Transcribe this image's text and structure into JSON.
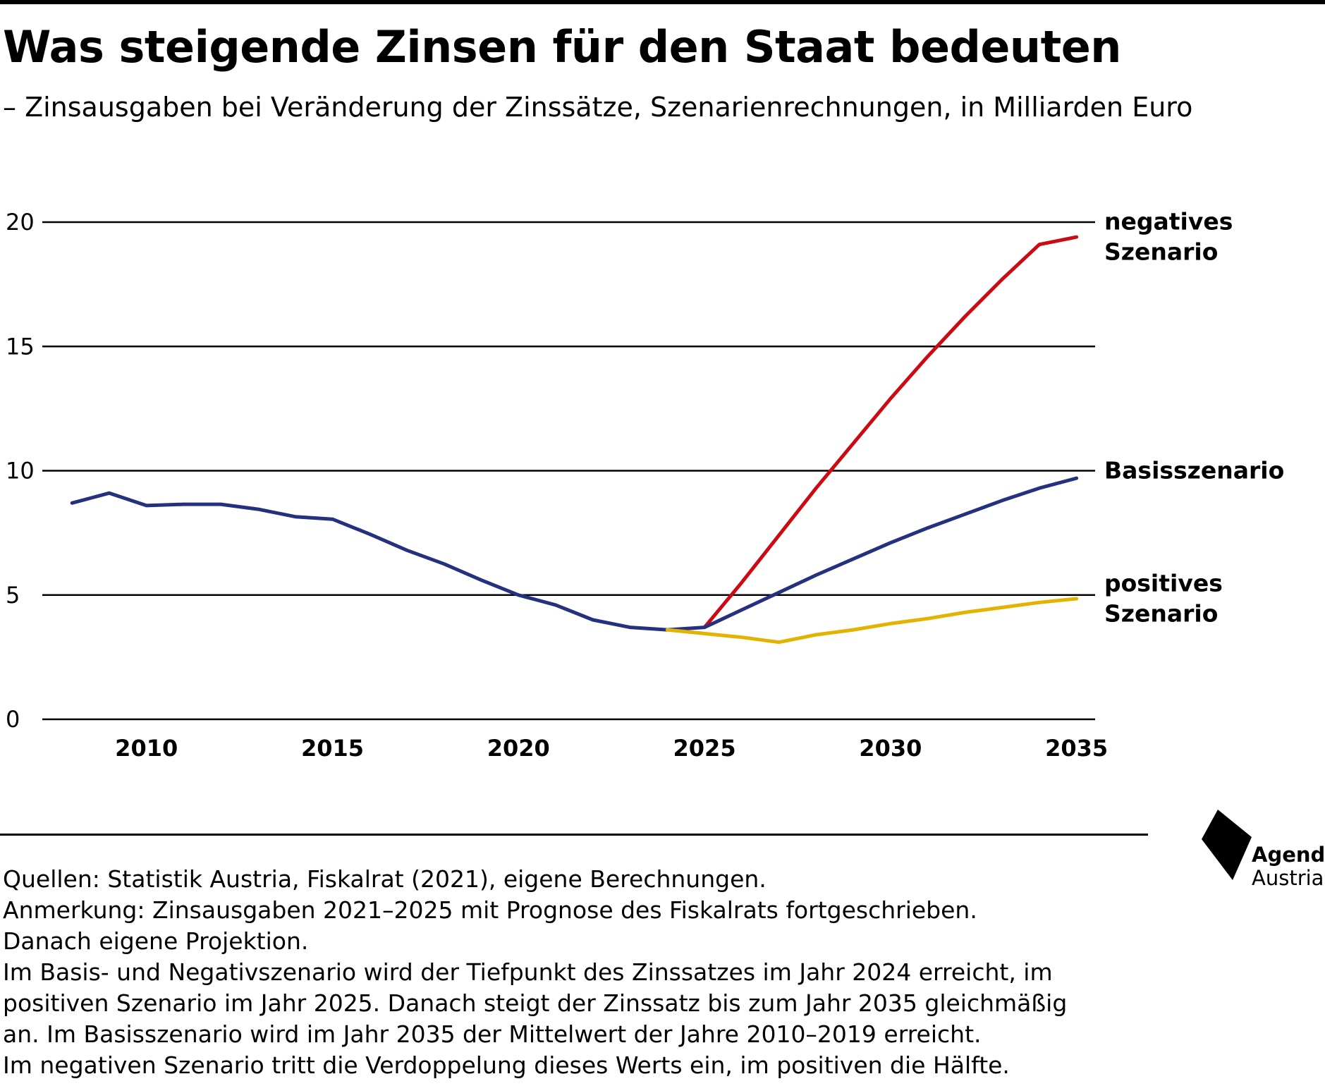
{
  "header": {
    "title": "Was steigende Zinsen für den Staat bedeuten",
    "subtitle": "– Zinsausgaben bei Veränderung der Zinssätze, Szenarienrechnungen, in Milliarden Euro"
  },
  "chart_data": {
    "type": "line",
    "title": "Was steigende Zinsen für den Staat bedeuten",
    "subtitle": "– Zinsausgaben bei Veränderung der Zinssätze, Szenarienrechnungen, in Milliarden Euro",
    "xlim": [
      2007.2,
      2035.5
    ],
    "ylim": [
      0,
      20
    ],
    "x_ticks": [
      2010,
      2015,
      2020,
      2025,
      2030,
      2035
    ],
    "y_ticks": [
      0,
      5,
      10,
      15,
      20
    ],
    "grid": "horizontal",
    "legend": "direct labels right of the lines",
    "series": [
      {
        "name": "negatives Szenario",
        "label_lines": [
          "negatives",
          "Szenario"
        ],
        "color": "#cc0a14",
        "x": [
          2025,
          2026,
          2027,
          2028,
          2029,
          2030,
          2031,
          2032,
          2033,
          2034,
          2035
        ],
        "y": [
          3.7,
          5.5,
          7.4,
          9.3,
          11.1,
          12.9,
          14.6,
          16.2,
          17.7,
          19.1,
          19.4
        ]
      },
      {
        "name": "Basisszenario",
        "label_lines": [
          "Basisszenario"
        ],
        "color": "#25307f",
        "x": [
          2008,
          2009,
          2010,
          2011,
          2012,
          2013,
          2014,
          2015,
          2016,
          2017,
          2018,
          2019,
          2020,
          2021,
          2022,
          2023,
          2024,
          2025,
          2026,
          2027,
          2028,
          2029,
          2030,
          2031,
          2032,
          2033,
          2034,
          2035
        ],
        "y": [
          8.7,
          9.1,
          8.6,
          8.65,
          8.65,
          8.45,
          8.15,
          8.05,
          7.45,
          6.8,
          6.25,
          5.6,
          5.0,
          4.6,
          4.0,
          3.7,
          3.6,
          3.7,
          4.4,
          5.1,
          5.8,
          6.45,
          7.1,
          7.7,
          8.25,
          8.8,
          9.3,
          9.7
        ]
      },
      {
        "name": "positives Szenario",
        "label_lines": [
          "positives",
          "Szenario"
        ],
        "color": "#e0b400",
        "x": [
          2024,
          2025,
          2026,
          2027,
          2028,
          2029,
          2030,
          2031,
          2032,
          2033,
          2034,
          2035
        ],
        "y": [
          3.6,
          3.45,
          3.3,
          3.1,
          3.4,
          3.6,
          3.85,
          4.05,
          4.3,
          4.5,
          4.7,
          4.85
        ]
      }
    ]
  },
  "footer": {
    "lines": [
      "Quellen: Statistik Austria, Fiskalrat (2021), eigene Berechnungen.",
      "Anmerkung: Zinsausgaben 2021–2025 mit Prognose des Fiskalrats fortgeschrieben.",
      "Danach eigene Projektion.",
      "Im Basis- und Negativszenario wird der Tiefpunkt des Zinssatzes im Jahr 2024 erreicht, im",
      "positiven Szenario im Jahr 2025. Danach steigt der Zinssatz bis zum Jahr 2035 gleichmäßig",
      "an. Im Basisszenario wird im Jahr 2035 der Mittelwert der Jahre 2010–2019 erreicht.",
      "Im negativen Szenario tritt die Verdoppelung dieses Werts ein, im positiven die Hälfte."
    ]
  },
  "logo": {
    "line1": "Agenda",
    "line2": "Austria",
    "icon": "agenda-austria-logo-icon"
  }
}
